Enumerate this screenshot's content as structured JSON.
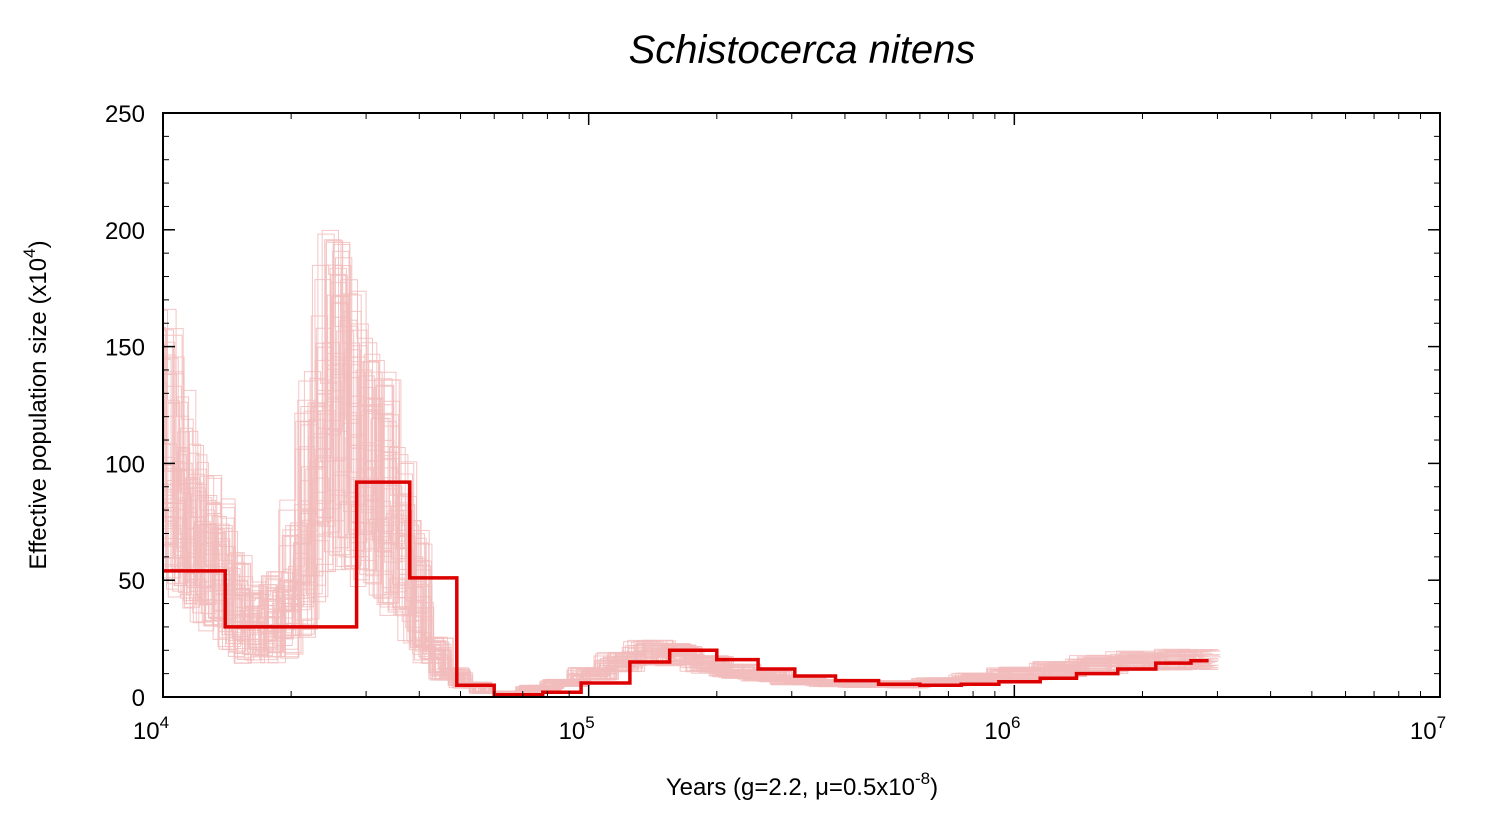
{
  "chart_data": {
    "type": "line",
    "title": "Schistocerca nitens",
    "xlabel": {
      "prefix": "Years (g=2.2, ",
      "mu": "μ",
      "middle": "=0.5x10",
      "exponent": "-8",
      "suffix": ")"
    },
    "ylabel": {
      "prefix": "Effective population size (x10",
      "exponent": "4",
      "suffix": ")"
    },
    "x_scale": "log",
    "xlim": [
      10000,
      10000000
    ],
    "ylim": [
      0,
      250
    ],
    "x_ticks": [
      {
        "value": 10000,
        "base": "10",
        "exp": "4"
      },
      {
        "value": 100000,
        "base": "10",
        "exp": "5"
      },
      {
        "value": 1000000,
        "base": "10",
        "exp": "6"
      },
      {
        "value": 10000000,
        "base": "10",
        "exp": "7"
      }
    ],
    "y_ticks": [
      0,
      50,
      100,
      150,
      200,
      250
    ],
    "grid": false,
    "colors": {
      "main": "#dd0000",
      "bootstrap": "#f2bcbc"
    },
    "series": [
      {
        "role": "main",
        "step": true,
        "x": [
          10000,
          14000,
          20800,
          28500,
          38000,
          49000,
          60000,
          78000,
          96000,
          125000,
          155000,
          200000,
          250000,
          305000,
          380000,
          480000,
          600000,
          750000,
          920000,
          1150000,
          1400000,
          1750000,
          2150000,
          2600000
        ],
        "y": [
          54,
          30,
          30,
          92,
          51,
          5,
          1,
          2,
          6,
          15,
          20,
          16,
          12,
          9,
          7,
          5.5,
          5,
          5.5,
          6.5,
          8,
          10,
          12,
          14.5,
          15.5
        ]
      }
    ],
    "bootstrap": {
      "count": 60,
      "step": true,
      "x": [
        10000,
        10600,
        11300,
        12000,
        13000,
        14000,
        15200,
        16600,
        18200,
        20000,
        21800,
        23800,
        26000,
        28500,
        31000,
        34000,
        37000,
        40500,
        45000,
        50000,
        56000,
        63000,
        72000,
        82000,
        95000,
        110000,
        128000,
        150000,
        175000,
        205000,
        240000,
        285000,
        340000,
        410000,
        500000,
        610000,
        750000,
        920000,
        1150000,
        1400000,
        1750000,
        2150000,
        2600000
      ],
      "y": [
        110,
        85,
        70,
        62,
        56,
        40,
        32,
        32,
        35,
        55,
        90,
        130,
        120,
        100,
        90,
        70,
        50,
        20,
        10,
        5,
        2,
        2,
        4,
        6,
        10,
        15,
        19,
        18,
        14,
        11,
        9,
        7,
        6,
        5.5,
        5.5,
        6.5,
        8,
        10,
        12,
        14,
        15.5,
        16,
        16
      ]
    }
  }
}
